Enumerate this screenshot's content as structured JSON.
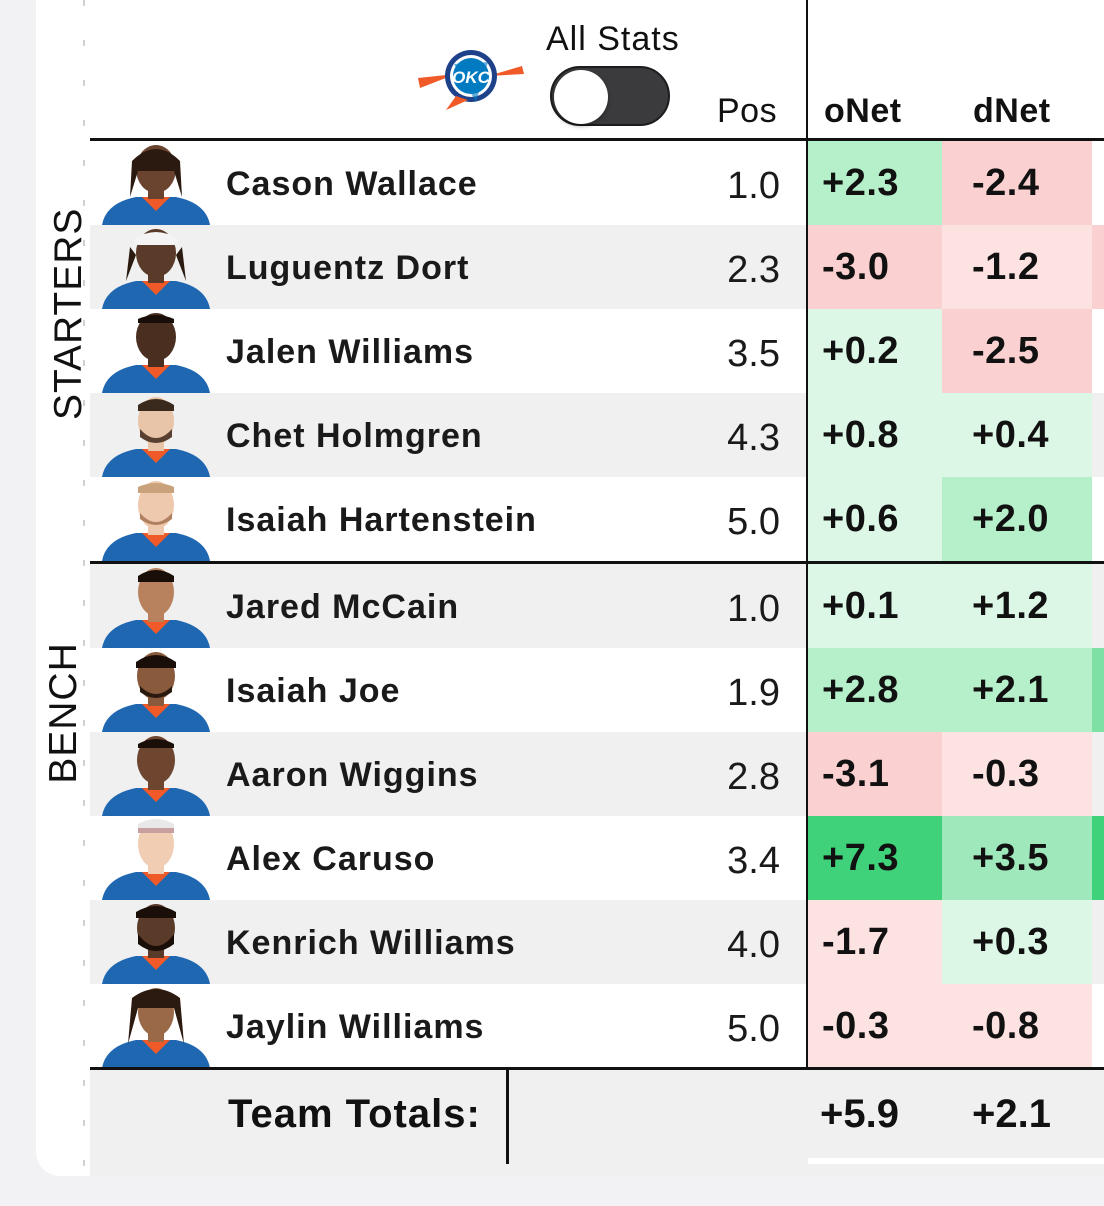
{
  "header": {
    "team_logo_icon": "okc-thunder-logo-icon",
    "toggle_label": "All Stats",
    "toggle_on": false,
    "columns": {
      "pos": "Pos",
      "onet": "oNet",
      "dnet": "dNet"
    }
  },
  "groups": {
    "starters": "STARTERS",
    "bench": "BENCH"
  },
  "colors": {
    "green_strong": "#3fd27a",
    "green_mid": "#b6f0cb",
    "green_light": "#dcf7e5",
    "red_mid": "#fbd0d0",
    "red_light": "#fde2e2"
  },
  "players": [
    {
      "name": "Cason Wallace",
      "pos": "1.0",
      "onet": "+2.3",
      "dnet": "-2.4"
    },
    {
      "name": "Luguentz Dort",
      "pos": "2.3",
      "onet": "-3.0",
      "dnet": "-1.2"
    },
    {
      "name": "Jalen Williams",
      "pos": "3.5",
      "onet": "+0.2",
      "dnet": "-2.5"
    },
    {
      "name": "Chet Holmgren",
      "pos": "4.3",
      "onet": "+0.8",
      "dnet": "+0.4"
    },
    {
      "name": "Isaiah Hartenstein",
      "pos": "5.0",
      "onet": "+0.6",
      "dnet": "+2.0"
    },
    {
      "name": "Jared McCain",
      "pos": "1.0",
      "onet": "+0.1",
      "dnet": "+1.2"
    },
    {
      "name": "Isaiah Joe",
      "pos": "1.9",
      "onet": "+2.8",
      "dnet": "+2.1"
    },
    {
      "name": "Aaron Wiggins",
      "pos": "2.8",
      "onet": "-3.1",
      "dnet": "-0.3"
    },
    {
      "name": "Alex Caruso",
      "pos": "3.4",
      "onet": "+7.3",
      "dnet": "+3.5"
    },
    {
      "name": "Kenrich Williams",
      "pos": "4.0",
      "onet": "-1.7",
      "dnet": "+0.3"
    },
    {
      "name": "Jaylin Williams",
      "pos": "5.0",
      "onet": "-0.3",
      "dnet": "-0.8"
    }
  ],
  "totals": {
    "label": "Team Totals:",
    "onet": "+5.9",
    "dnet": "+2.1"
  }
}
